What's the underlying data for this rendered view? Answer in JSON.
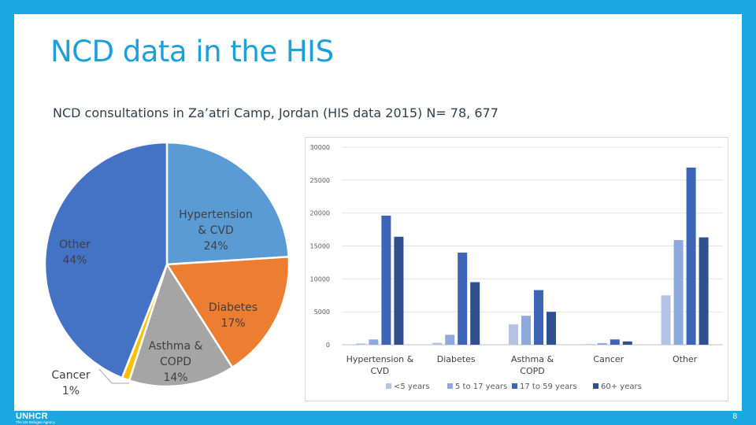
{
  "slide": {
    "title": "NCD data in the HIS",
    "subtitle": "NCD consultations in Za’atri Camp, Jordan (HIS data 2015)  N= 78, 677",
    "page_number": "8"
  },
  "footer": {
    "logo_text": "UNHCR",
    "logo_subtext": "The UN Refugee Agency"
  },
  "colors": {
    "background": "#1ba7e0",
    "title": "#1e9fd9"
  },
  "chart_data": [
    {
      "type": "pie",
      "categories": [
        "Hypertension & CVD",
        "Diabetes",
        "Asthma & COPD",
        "Cancer",
        "Other"
      ],
      "values": [
        24,
        17,
        14,
        1,
        44
      ],
      "labels": [
        [
          "Hypertension",
          "& CVD",
          "24%"
        ],
        [
          "Diabetes",
          "17%"
        ],
        [
          "Asthma &",
          "COPD",
          "14%"
        ],
        [
          "Cancer",
          "1%"
        ],
        [
          "Other",
          "44%"
        ]
      ],
      "colors": [
        "#5b9bd5",
        "#ed7d31",
        "#a5a5a5",
        "#ffc000",
        "#4472c4"
      ]
    },
    {
      "type": "bar",
      "categories": [
        [
          "Hypertension &",
          "CVD"
        ],
        [
          "Diabetes"
        ],
        [
          "Asthma &",
          "COPD"
        ],
        [
          "Cancer"
        ],
        [
          "Other"
        ]
      ],
      "series": [
        {
          "name": "<5 years",
          "color": "#b4c3e4",
          "values": [
            200,
            300,
            3100,
            100,
            7500
          ]
        },
        {
          "name": "5 to 17 years",
          "color": "#8ea9dc",
          "values": [
            800,
            1500,
            4400,
            250,
            15900
          ]
        },
        {
          "name": "17 to 59 years",
          "color": "#3e64b8",
          "values": [
            19600,
            14000,
            8300,
            800,
            26900
          ]
        },
        {
          "name": "60+ years",
          "color": "#2f4f8f",
          "values": [
            16400,
            9500,
            5000,
            500,
            16300
          ]
        }
      ],
      "yticks": [
        "0",
        "5000",
        "10000",
        "15000",
        "20000",
        "25000",
        "30000"
      ],
      "ylim": [
        0,
        30000
      ],
      "grid": true,
      "legend": "bottom"
    }
  ]
}
